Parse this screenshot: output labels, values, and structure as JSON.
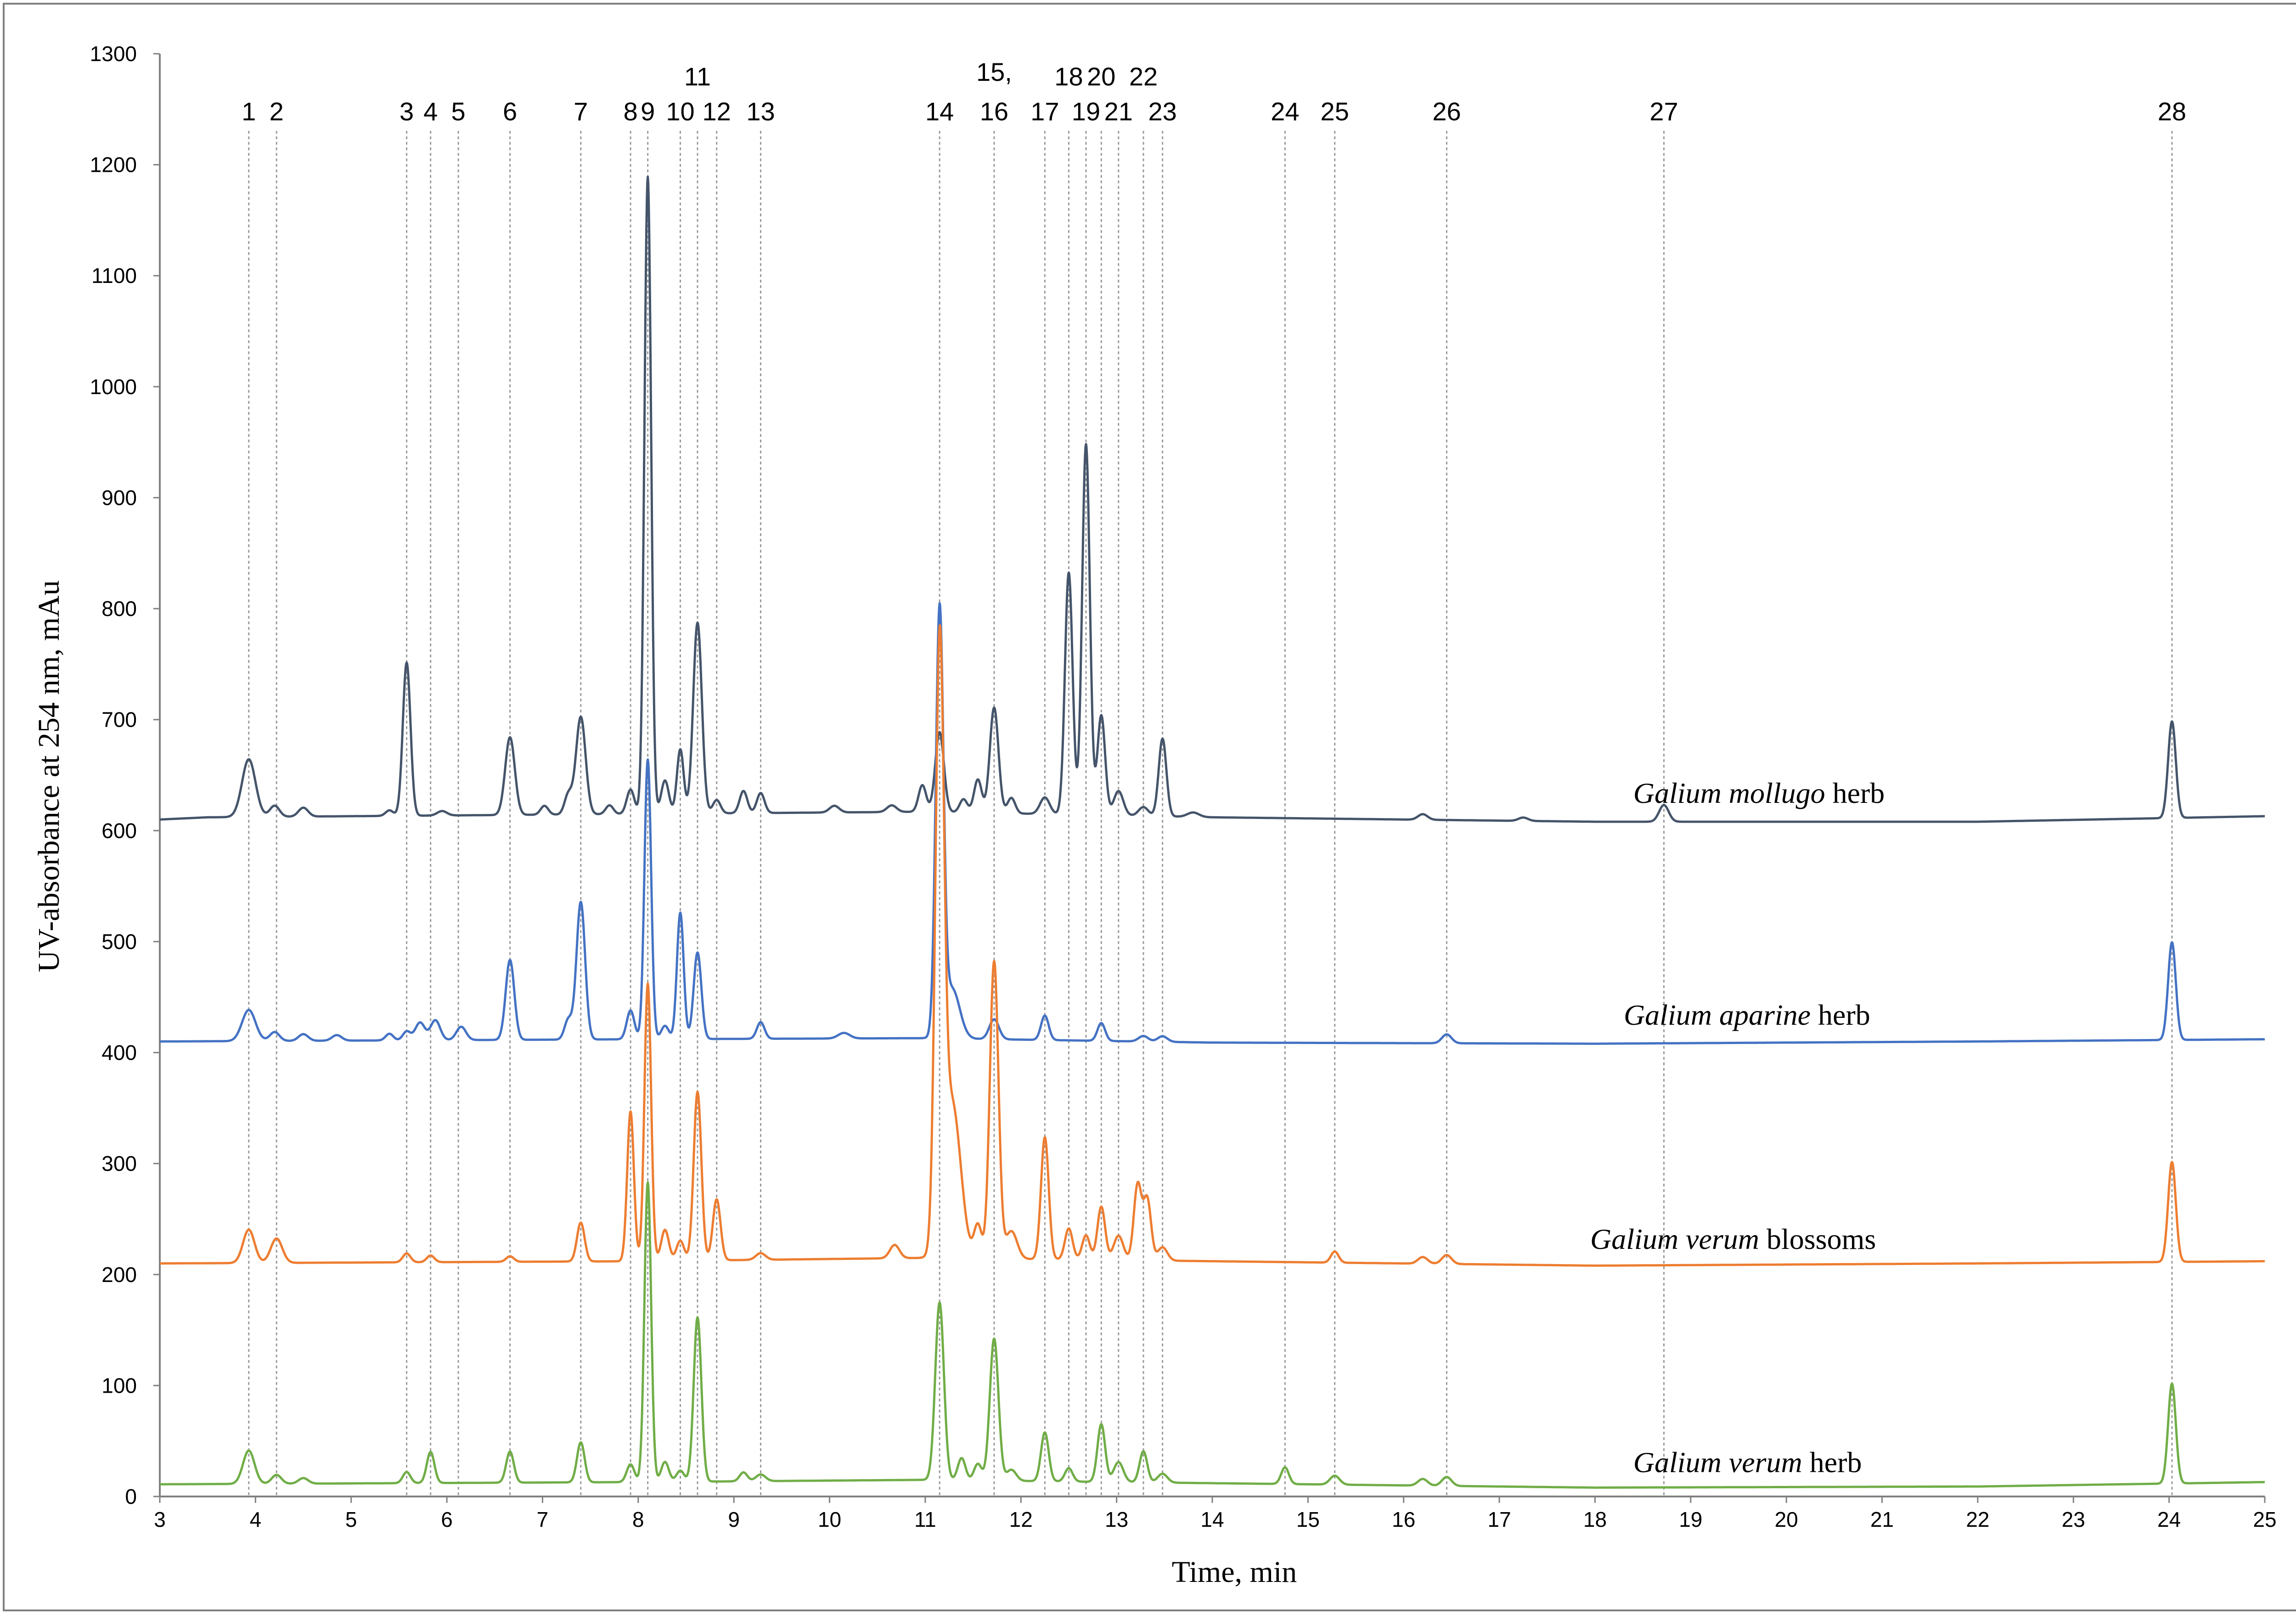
{
  "chart_data": {
    "type": "line",
    "xlabel": "Time, min",
    "ylabel": "UV-absorbance at 254 nm, mAu",
    "xlim": [
      3,
      25
    ],
    "ylim": [
      0,
      1300
    ],
    "xticks": [
      3,
      4,
      5,
      6,
      7,
      8,
      9,
      10,
      11,
      12,
      13,
      14,
      15,
      16,
      17,
      18,
      19,
      20,
      21,
      22,
      23,
      24,
      25
    ],
    "yticks": [
      0,
      100,
      200,
      300,
      400,
      500,
      600,
      700,
      800,
      900,
      1000,
      1100,
      1200,
      1300
    ],
    "grid": false,
    "peak_markers": [
      {
        "label": "1",
        "x": 3.93
      },
      {
        "label": "2",
        "x": 4.22
      },
      {
        "label": "3",
        "x": 5.58
      },
      {
        "label": "4",
        "x": 5.83
      },
      {
        "label": "5",
        "x": 6.12
      },
      {
        "label": "6",
        "x": 6.66
      },
      {
        "label": "7",
        "x": 7.4
      },
      {
        "label": "8",
        "x": 7.92
      },
      {
        "label": "9",
        "x": 8.1
      },
      {
        "label": "10",
        "x": 8.44
      },
      {
        "label": "11",
        "x": 8.62
      },
      {
        "label": "12",
        "x": 8.82
      },
      {
        "label": "13",
        "x": 9.28
      },
      {
        "label": "14",
        "x": 11.15
      },
      {
        "label": "15,",
        "x": 11.72
      },
      {
        "label": "16",
        "x": 11.72
      },
      {
        "label": "17",
        "x": 12.25
      },
      {
        "label": "18",
        "x": 12.5
      },
      {
        "label": "19",
        "x": 12.68
      },
      {
        "label": "20",
        "x": 12.84
      },
      {
        "label": "21",
        "x": 13.02
      },
      {
        "label": "22",
        "x": 13.28
      },
      {
        "label": "23",
        "x": 13.48
      },
      {
        "label": "24",
        "x": 14.76
      },
      {
        "label": "25",
        "x": 15.28
      },
      {
        "label": "26",
        "x": 16.45
      },
      {
        "label": "27",
        "x": 18.72
      },
      {
        "label": "28",
        "x": 24.03
      }
    ],
    "series": [
      {
        "label_italic": "Galium mollugo",
        "label_rest": " herb",
        "label_x": 18.4,
        "label_y": 625,
        "color": "#44546a",
        "baseline": [
          [
            3,
            610
          ],
          [
            3.5,
            612
          ],
          [
            8,
            615
          ],
          [
            11,
            617
          ],
          [
            14,
            612
          ],
          [
            18,
            608
          ],
          [
            22,
            608
          ],
          [
            25,
            613
          ]
        ],
        "peaks": [
          [
            3.93,
            52,
            0.07
          ],
          [
            4.2,
            10,
            0.05
          ],
          [
            4.5,
            8,
            0.05
          ],
          [
            5.4,
            5,
            0.04
          ],
          [
            5.58,
            138,
            0.04
          ],
          [
            5.95,
            4,
            0.05
          ],
          [
            6.66,
            70,
            0.05
          ],
          [
            7.02,
            8,
            0.04
          ],
          [
            7.27,
            18,
            0.04
          ],
          [
            7.4,
            88,
            0.05
          ],
          [
            7.7,
            8,
            0.04
          ],
          [
            7.92,
            22,
            0.04
          ],
          [
            8.1,
            574,
            0.035
          ],
          [
            8.28,
            30,
            0.04
          ],
          [
            8.44,
            58,
            0.035
          ],
          [
            8.62,
            172,
            0.045
          ],
          [
            8.82,
            12,
            0.04
          ],
          [
            9.1,
            20,
            0.04
          ],
          [
            9.28,
            18,
            0.04
          ],
          [
            10.05,
            6,
            0.05
          ],
          [
            10.65,
            6,
            0.05
          ],
          [
            10.97,
            24,
            0.04
          ],
          [
            11.15,
            72,
            0.045
          ],
          [
            11.4,
            12,
            0.04
          ],
          [
            11.55,
            30,
            0.04
          ],
          [
            11.72,
            95,
            0.045
          ],
          [
            11.9,
            14,
            0.04
          ],
          [
            12.25,
            15,
            0.05
          ],
          [
            12.5,
            218,
            0.04
          ],
          [
            12.68,
            334,
            0.04
          ],
          [
            12.84,
            90,
            0.04
          ],
          [
            13.02,
            22,
            0.05
          ],
          [
            13.28,
            8,
            0.05
          ],
          [
            13.48,
            70,
            0.04
          ],
          [
            13.8,
            4,
            0.06
          ],
          [
            16.2,
            5,
            0.05
          ],
          [
            17.25,
            3,
            0.05
          ],
          [
            18.72,
            15,
            0.05
          ],
          [
            24.03,
            87,
            0.04
          ]
        ]
      },
      {
        "label_italic": "Galium aparine",
        "label_rest": " herb",
        "label_x": 18.3,
        "label_y": 425,
        "color": "#4472c4",
        "baseline": [
          [
            3,
            410
          ],
          [
            8,
            412
          ],
          [
            11,
            413
          ],
          [
            14,
            409
          ],
          [
            18,
            408
          ],
          [
            22,
            410
          ],
          [
            25,
            412
          ]
        ],
        "peaks": [
          [
            3.93,
            28,
            0.07
          ],
          [
            4.2,
            8,
            0.05
          ],
          [
            4.5,
            6,
            0.05
          ],
          [
            4.85,
            5,
            0.05
          ],
          [
            5.4,
            6,
            0.04
          ],
          [
            5.58,
            8,
            0.04
          ],
          [
            5.72,
            16,
            0.05
          ],
          [
            5.88,
            18,
            0.05
          ],
          [
            6.15,
            12,
            0.05
          ],
          [
            6.66,
            72,
            0.045
          ],
          [
            7.27,
            18,
            0.04
          ],
          [
            7.4,
            124,
            0.045
          ],
          [
            7.92,
            26,
            0.04
          ],
          [
            8.1,
            252,
            0.035
          ],
          [
            8.28,
            12,
            0.04
          ],
          [
            8.44,
            114,
            0.035
          ],
          [
            8.62,
            78,
            0.04
          ],
          [
            9.28,
            15,
            0.04
          ],
          [
            10.15,
            5,
            0.06
          ],
          [
            11.15,
            380,
            0.04
          ],
          [
            11.28,
            45,
            0.08
          ],
          [
            11.72,
            18,
            0.05
          ],
          [
            12.25,
            22,
            0.04
          ],
          [
            12.84,
            16,
            0.04
          ],
          [
            13.28,
            5,
            0.05
          ],
          [
            13.48,
            5,
            0.05
          ],
          [
            16.45,
            8,
            0.05
          ],
          [
            24.03,
            88,
            0.04
          ]
        ]
      },
      {
        "label_italic": "Galium verum",
        "label_rest": " blossoms",
        "label_x": 17.95,
        "label_y": 223,
        "color": "#ed7d31",
        "baseline": [
          [
            3,
            210
          ],
          [
            8,
            212
          ],
          [
            11,
            215
          ],
          [
            14,
            212
          ],
          [
            18,
            208
          ],
          [
            22,
            210
          ],
          [
            25,
            212
          ]
        ],
        "peaks": [
          [
            3.93,
            30,
            0.06
          ],
          [
            4.22,
            22,
            0.06
          ],
          [
            5.58,
            8,
            0.04
          ],
          [
            5.83,
            6,
            0.04
          ],
          [
            6.66,
            5,
            0.04
          ],
          [
            7.4,
            35,
            0.04
          ],
          [
            7.92,
            135,
            0.035
          ],
          [
            8.1,
            250,
            0.035
          ],
          [
            8.28,
            28,
            0.04
          ],
          [
            8.44,
            18,
            0.04
          ],
          [
            8.62,
            152,
            0.04
          ],
          [
            8.82,
            55,
            0.04
          ],
          [
            9.28,
            6,
            0.05
          ],
          [
            10.68,
            12,
            0.05
          ],
          [
            11.15,
            520,
            0.045
          ],
          [
            11.28,
            140,
            0.09
          ],
          [
            11.55,
            30,
            0.04
          ],
          [
            11.72,
            268,
            0.045
          ],
          [
            11.9,
            25,
            0.06
          ],
          [
            12.25,
            110,
            0.04
          ],
          [
            12.5,
            28,
            0.04
          ],
          [
            12.68,
            22,
            0.04
          ],
          [
            12.84,
            48,
            0.04
          ],
          [
            13.02,
            22,
            0.05
          ],
          [
            13.22,
            68,
            0.04
          ],
          [
            13.32,
            55,
            0.04
          ],
          [
            13.48,
            12,
            0.05
          ],
          [
            15.28,
            10,
            0.04
          ],
          [
            16.2,
            6,
            0.05
          ],
          [
            16.45,
            8,
            0.05
          ],
          [
            24.03,
            90,
            0.04
          ]
        ]
      },
      {
        "label_italic": "Galium verum",
        "label_rest": " herb",
        "label_x": 18.4,
        "label_y": 22,
        "color": "#70ad47",
        "baseline": [
          [
            3,
            11
          ],
          [
            8,
            13
          ],
          [
            11,
            15
          ],
          [
            14,
            12
          ],
          [
            18,
            8
          ],
          [
            22,
            9
          ],
          [
            25,
            13
          ]
        ],
        "peaks": [
          [
            3.93,
            30,
            0.06
          ],
          [
            4.22,
            8,
            0.05
          ],
          [
            4.5,
            5,
            0.05
          ],
          [
            5.58,
            10,
            0.04
          ],
          [
            5.83,
            28,
            0.04
          ],
          [
            6.66,
            28,
            0.04
          ],
          [
            7.4,
            36,
            0.04
          ],
          [
            7.92,
            16,
            0.04
          ],
          [
            8.1,
            270,
            0.035
          ],
          [
            8.28,
            18,
            0.04
          ],
          [
            8.44,
            10,
            0.04
          ],
          [
            8.62,
            148,
            0.04
          ],
          [
            9.1,
            8,
            0.04
          ],
          [
            9.28,
            6,
            0.05
          ],
          [
            11.15,
            160,
            0.045
          ],
          [
            11.38,
            20,
            0.04
          ],
          [
            11.55,
            15,
            0.04
          ],
          [
            11.72,
            128,
            0.045
          ],
          [
            11.9,
            10,
            0.05
          ],
          [
            12.25,
            44,
            0.04
          ],
          [
            12.5,
            12,
            0.04
          ],
          [
            12.84,
            52,
            0.04
          ],
          [
            13.02,
            18,
            0.05
          ],
          [
            13.28,
            28,
            0.04
          ],
          [
            13.48,
            8,
            0.05
          ],
          [
            14.76,
            15,
            0.04
          ],
          [
            15.28,
            8,
            0.05
          ],
          [
            16.2,
            6,
            0.05
          ],
          [
            16.45,
            8,
            0.05
          ],
          [
            24.03,
            90,
            0.04
          ]
        ]
      }
    ]
  }
}
